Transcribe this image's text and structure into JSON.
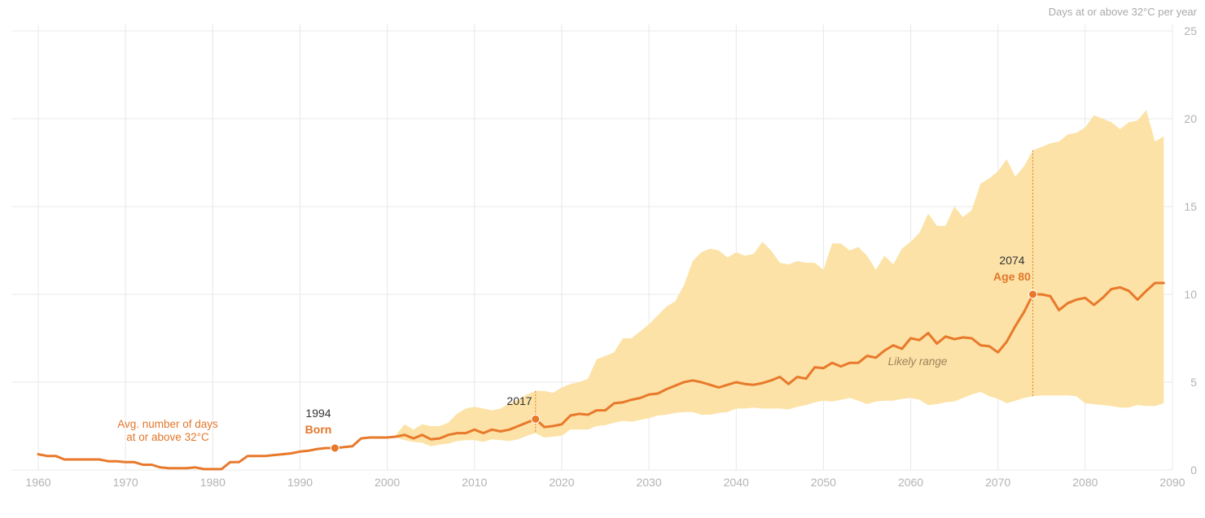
{
  "colors": {
    "line": "#e8792b",
    "band": "#fce2a6",
    "grid": "#e8e8e8",
    "tick": "#b3b3b3"
  },
  "chart_data": {
    "type": "line",
    "ylabel": "Days at or above 32°C per year",
    "xlim": [
      1958,
      2090
    ],
    "ylim": [
      0,
      25
    ],
    "x_ticks": [
      1960,
      1970,
      1980,
      1990,
      2000,
      2010,
      2020,
      2030,
      2040,
      2050,
      2060,
      2070,
      2080,
      2090
    ],
    "y_ticks": [
      0,
      5,
      10,
      15,
      20,
      25
    ],
    "grid": true,
    "series": [
      {
        "values": [
          [
            1960,
            0.9
          ],
          [
            1961,
            0.8
          ],
          [
            1962,
            0.8
          ],
          [
            1963,
            0.6
          ],
          [
            1964,
            0.6
          ],
          [
            1965,
            0.6
          ],
          [
            1966,
            0.6
          ],
          [
            1967,
            0.6
          ],
          [
            1968,
            0.5
          ],
          [
            1969,
            0.5
          ],
          [
            1970,
            0.45
          ],
          [
            1971,
            0.45
          ],
          [
            1972,
            0.3
          ],
          [
            1973,
            0.3
          ],
          [
            1974,
            0.15
          ],
          [
            1975,
            0.1
          ],
          [
            1976,
            0.1
          ],
          [
            1977,
            0.1
          ],
          [
            1978,
            0.15
          ],
          [
            1979,
            0.05
          ],
          [
            1980,
            0.05
          ],
          [
            1981,
            0.05
          ],
          [
            1982,
            0.45
          ],
          [
            1983,
            0.45
          ],
          [
            1984,
            0.8
          ],
          [
            1985,
            0.8
          ],
          [
            1986,
            0.8
          ],
          [
            1987,
            0.85
          ],
          [
            1988,
            0.9
          ],
          [
            1989,
            0.95
          ],
          [
            1990,
            1.05
          ],
          [
            1991,
            1.1
          ],
          [
            1992,
            1.2
          ],
          [
            1993,
            1.25
          ],
          [
            1994,
            1.25
          ],
          [
            1995,
            1.3
          ],
          [
            1996,
            1.35
          ],
          [
            1997,
            1.8
          ],
          [
            1998,
            1.85
          ],
          [
            1999,
            1.85
          ],
          [
            2000,
            1.85
          ],
          [
            2001,
            1.9
          ],
          [
            2002,
            2.0
          ],
          [
            2003,
            1.8
          ],
          [
            2004,
            2.0
          ],
          [
            2005,
            1.75
          ],
          [
            2006,
            1.8
          ],
          [
            2007,
            2.0
          ],
          [
            2008,
            2.1
          ],
          [
            2009,
            2.1
          ],
          [
            2010,
            2.3
          ],
          [
            2011,
            2.1
          ],
          [
            2012,
            2.3
          ],
          [
            2013,
            2.2
          ],
          [
            2014,
            2.3
          ],
          [
            2015,
            2.5
          ],
          [
            2016,
            2.7
          ],
          [
            2017,
            2.9
          ],
          [
            2018,
            2.45
          ],
          [
            2019,
            2.5
          ],
          [
            2020,
            2.6
          ],
          [
            2021,
            3.1
          ],
          [
            2022,
            3.2
          ],
          [
            2023,
            3.15
          ],
          [
            2024,
            3.4
          ],
          [
            2025,
            3.4
          ],
          [
            2026,
            3.8
          ],
          [
            2027,
            3.85
          ],
          [
            2028,
            4.0
          ],
          [
            2029,
            4.1
          ],
          [
            2030,
            4.3
          ],
          [
            2031,
            4.35
          ],
          [
            2032,
            4.6
          ],
          [
            2033,
            4.8
          ],
          [
            2034,
            5.0
          ],
          [
            2035,
            5.1
          ],
          [
            2036,
            5.0
          ],
          [
            2037,
            4.85
          ],
          [
            2038,
            4.7
          ],
          [
            2039,
            4.85
          ],
          [
            2040,
            5.0
          ],
          [
            2041,
            4.9
          ],
          [
            2042,
            4.85
          ],
          [
            2043,
            4.95
          ],
          [
            2044,
            5.1
          ],
          [
            2045,
            5.3
          ],
          [
            2046,
            4.9
          ],
          [
            2047,
            5.3
          ],
          [
            2048,
            5.2
          ],
          [
            2049,
            5.85
          ],
          [
            2050,
            5.8
          ],
          [
            2051,
            6.1
          ],
          [
            2052,
            5.9
          ],
          [
            2053,
            6.1
          ],
          [
            2054,
            6.1
          ],
          [
            2055,
            6.5
          ],
          [
            2056,
            6.4
          ],
          [
            2057,
            6.8
          ],
          [
            2058,
            7.1
          ],
          [
            2059,
            6.9
          ],
          [
            2060,
            7.5
          ],
          [
            2061,
            7.4
          ],
          [
            2062,
            7.8
          ],
          [
            2063,
            7.2
          ],
          [
            2064,
            7.6
          ],
          [
            2065,
            7.45
          ],
          [
            2066,
            7.55
          ],
          [
            2067,
            7.5
          ],
          [
            2068,
            7.1
          ],
          [
            2069,
            7.05
          ],
          [
            2070,
            6.7
          ],
          [
            2071,
            7.3
          ],
          [
            2072,
            8.2
          ],
          [
            2073,
            9.0
          ],
          [
            2074,
            10.0
          ],
          [
            2075,
            10.0
          ],
          [
            2076,
            9.9
          ],
          [
            2077,
            9.1
          ],
          [
            2078,
            9.5
          ],
          [
            2079,
            9.7
          ],
          [
            2080,
            9.8
          ],
          [
            2081,
            9.4
          ],
          [
            2082,
            9.8
          ],
          [
            2083,
            10.3
          ],
          [
            2084,
            10.4
          ],
          [
            2085,
            10.2
          ],
          [
            2086,
            9.7
          ],
          [
            2087,
            10.2
          ],
          [
            2088,
            10.65
          ],
          [
            2089,
            10.65
          ]
        ]
      }
    ],
    "likely_range": {
      "x": [
        2001,
        2002,
        2003,
        2004,
        2005,
        2006,
        2007,
        2008,
        2009,
        2010,
        2011,
        2012,
        2013,
        2014,
        2015,
        2016,
        2017,
        2018,
        2019,
        2020,
        2021,
        2022,
        2023,
        2024,
        2025,
        2026,
        2027,
        2028,
        2029,
        2030,
        2031,
        2032,
        2033,
        2034,
        2035,
        2036,
        2037,
        2038,
        2039,
        2040,
        2041,
        2042,
        2043,
        2044,
        2045,
        2046,
        2047,
        2048,
        2049,
        2050,
        2051,
        2052,
        2053,
        2054,
        2055,
        2056,
        2057,
        2058,
        2059,
        2060,
        2061,
        2062,
        2063,
        2064,
        2065,
        2066,
        2067,
        2068,
        2069,
        2070,
        2071,
        2072,
        2073,
        2074,
        2075,
        2076,
        2077,
        2078,
        2079,
        2080,
        2081,
        2082,
        2083,
        2084,
        2085,
        2086,
        2087,
        2088,
        2089
      ],
      "high": [
        2.0,
        2.6,
        2.3,
        2.6,
        2.5,
        2.5,
        2.7,
        3.2,
        3.5,
        3.6,
        3.5,
        3.4,
        3.5,
        3.8,
        4.0,
        4.3,
        4.5,
        4.5,
        4.4,
        4.7,
        4.9,
        5.0,
        5.2,
        6.3,
        6.5,
        6.7,
        7.5,
        7.5,
        7.9,
        8.3,
        8.8,
        9.3,
        9.6,
        10.5,
        11.9,
        12.4,
        12.6,
        12.5,
        12.1,
        12.4,
        12.2,
        12.3,
        13.0,
        12.5,
        11.8,
        11.7,
        11.9,
        11.8,
        11.8,
        11.4,
        12.9,
        12.9,
        12.5,
        12.7,
        12.2,
        11.4,
        12.2,
        11.7,
        12.6,
        13.0,
        13.5,
        14.6,
        13.9,
        13.9,
        15.0,
        14.4,
        14.8,
        16.3,
        16.6,
        17.0,
        17.7,
        16.7,
        17.3,
        18.2,
        18.4,
        18.6,
        18.7,
        19.1,
        19.2,
        19.5,
        20.2,
        20.0,
        19.8,
        19.4,
        19.8,
        19.9,
        20.5,
        18.7,
        19.0
      ],
      "low": [
        1.85,
        1.7,
        1.6,
        1.55,
        1.35,
        1.45,
        1.5,
        1.65,
        1.7,
        1.7,
        1.6,
        1.75,
        1.7,
        1.65,
        1.75,
        1.95,
        2.1,
        1.85,
        1.9,
        1.95,
        2.3,
        2.3,
        2.3,
        2.5,
        2.55,
        2.7,
        2.8,
        2.75,
        2.85,
        2.95,
        3.1,
        3.15,
        3.25,
        3.3,
        3.3,
        3.15,
        3.15,
        3.25,
        3.3,
        3.5,
        3.5,
        3.55,
        3.5,
        3.5,
        3.5,
        3.45,
        3.6,
        3.7,
        3.85,
        3.95,
        3.9,
        4.0,
        4.1,
        3.95,
        3.75,
        3.9,
        3.95,
        3.95,
        4.05,
        4.1,
        4.0,
        3.7,
        3.75,
        3.85,
        3.9,
        4.1,
        4.3,
        4.45,
        4.2,
        4.05,
        3.8,
        3.95,
        4.1,
        4.2,
        4.25,
        4.25,
        4.25,
        4.25,
        4.2,
        3.8,
        3.75,
        3.7,
        3.65,
        3.55,
        3.55,
        3.7,
        3.65,
        3.65,
        3.8
      ]
    },
    "annotations": {
      "avg_line1": "Avg. number of days",
      "avg_line2": "at or above 32°C",
      "born_year": "1994",
      "born_label": "Born",
      "year_2017": "2017",
      "age_year": "2074",
      "age_label": "Age 80",
      "likely_range_label": "Likely range"
    },
    "markers": [
      {
        "x": 1994,
        "y": 1.25
      },
      {
        "x": 2017,
        "y": 2.9
      },
      {
        "x": 2074,
        "y": 10.0
      }
    ],
    "guides": [
      {
        "x": 2017,
        "y_top": 4.5,
        "y_bottom": 2.1
      },
      {
        "x": 2074,
        "y_top": 18.2,
        "y_bottom": 4.2
      }
    ]
  }
}
